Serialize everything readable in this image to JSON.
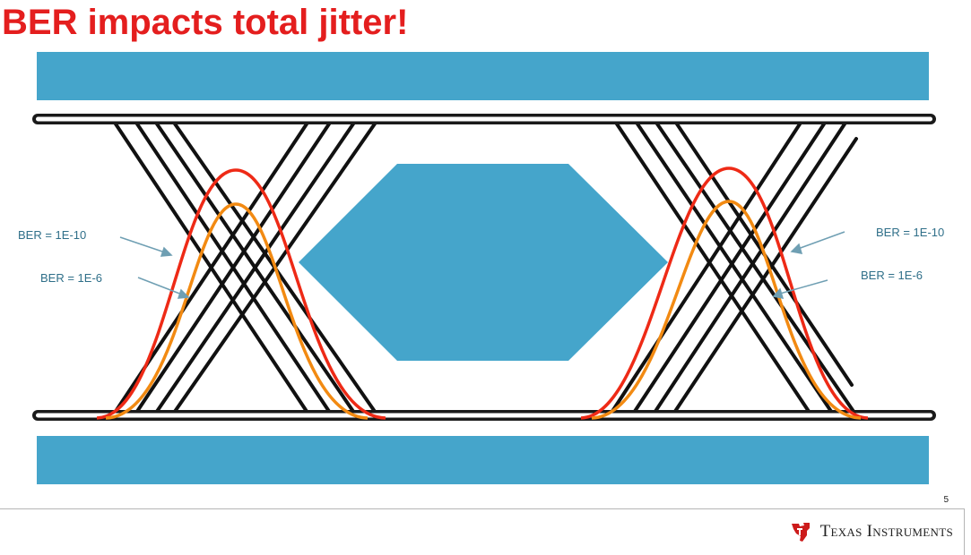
{
  "slide": {
    "title": "BER impacts total jitter!",
    "page_number": "5"
  },
  "diagram": {
    "description_labels": {
      "left_outer": "BER = 1E-10",
      "left_inner": "BER = 1E-6",
      "right_outer": "BER = 1E-10",
      "right_inner": "BER = 1E-6"
    },
    "colors": {
      "mask": "#45a5cb",
      "rail": "#1a1a1a",
      "transition": "#111111",
      "curve_ber_1e10": "#ee2a16",
      "curve_ber_1e6": "#f28a12",
      "label": "#2f6f89"
    }
  },
  "footer": {
    "brand": "Texas Instruments",
    "logo_icon": "ti-logo-icon"
  }
}
